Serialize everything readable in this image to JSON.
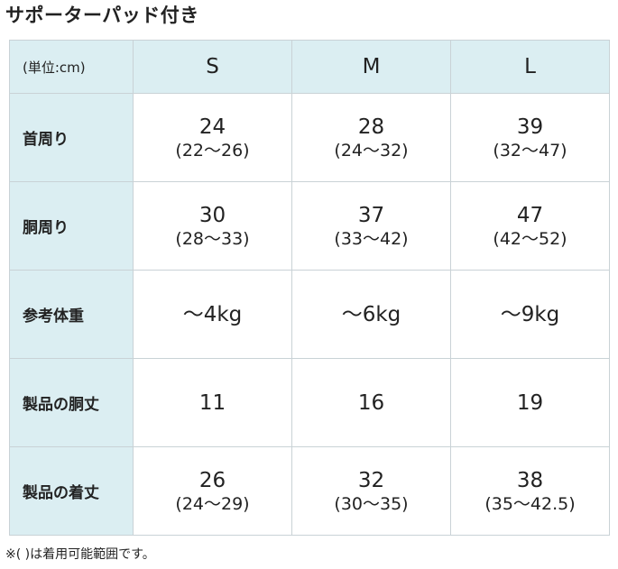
{
  "title": "サポーターパッド付き",
  "table": {
    "corner_label": "(単位:cm)",
    "columns": [
      "S",
      "M",
      "L"
    ],
    "rows": [
      {
        "label": "首周り",
        "cells": [
          {
            "main": "24",
            "range": "(22〜26)"
          },
          {
            "main": "28",
            "range": "(24〜32)"
          },
          {
            "main": "39",
            "range": "(32〜47)"
          }
        ]
      },
      {
        "label": "胴周り",
        "cells": [
          {
            "main": "30",
            "range": "(28〜33)"
          },
          {
            "main": "37",
            "range": "(33〜42)"
          },
          {
            "main": "47",
            "range": "(42〜52)"
          }
        ]
      },
      {
        "label": "参考体重",
        "cells": [
          {
            "main": "〜4kg",
            "range": ""
          },
          {
            "main": "〜6kg",
            "range": ""
          },
          {
            "main": "〜9kg",
            "range": ""
          }
        ]
      },
      {
        "label": "製品の胴丈",
        "cells": [
          {
            "main": "11",
            "range": ""
          },
          {
            "main": "16",
            "range": ""
          },
          {
            "main": "19",
            "range": ""
          }
        ]
      },
      {
        "label": "製品の着丈",
        "cells": [
          {
            "main": "26",
            "range": "(24〜29)"
          },
          {
            "main": "32",
            "range": "(30〜35)"
          },
          {
            "main": "38",
            "range": "(35〜42.5)"
          }
        ]
      }
    ]
  },
  "note": "※( )は着用可能範囲です。"
}
